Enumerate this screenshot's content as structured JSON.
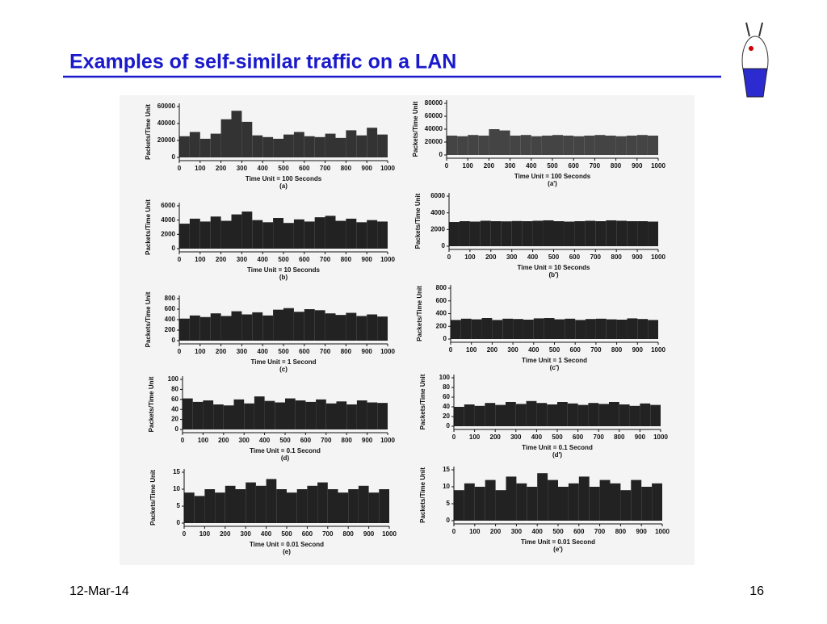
{
  "title": "Examples of self-similar traffic on a LAN",
  "footer": {
    "date": "12-Mar-14",
    "page": "16"
  },
  "chart_data": [
    {
      "type": "histogram",
      "caption": "(a)",
      "y_label": "Packets/Time Unit",
      "x_label": "Time Unit = 100 Seconds",
      "color": "#333333",
      "bins": [
        0,
        50,
        100,
        150,
        200,
        250,
        300,
        350,
        400,
        450,
        500,
        550,
        600,
        650,
        700,
        750,
        800,
        850,
        900,
        950,
        1000
      ],
      "values": [
        25000,
        30000,
        22000,
        28000,
        45000,
        55000,
        42000,
        26000,
        24000,
        22000,
        27000,
        30000,
        25000,
        24000,
        28000,
        23000,
        32000,
        26000,
        35000,
        27000
      ],
      "xlim": [
        0,
        1000
      ],
      "xticks": [
        0,
        100,
        200,
        300,
        400,
        500,
        600,
        700,
        800,
        900,
        1000
      ],
      "ylim": [
        0,
        60000
      ],
      "yticks": [
        0,
        20000,
        40000,
        60000
      ]
    },
    {
      "type": "histogram",
      "caption": "(b)",
      "y_label": "Packets/Time Unit",
      "x_label": "Time Unit = 10 Seconds",
      "color": "#222222",
      "bins": [
        0,
        50,
        100,
        150,
        200,
        250,
        300,
        350,
        400,
        450,
        500,
        550,
        600,
        650,
        700,
        750,
        800,
        850,
        900,
        950,
        1000
      ],
      "values": [
        3500,
        4200,
        3800,
        4500,
        3900,
        4800,
        5200,
        4000,
        3700,
        4300,
        3600,
        4100,
        3800,
        4400,
        4600,
        3900,
        4200,
        3700,
        4000,
        3800
      ],
      "xlim": [
        0,
        1000
      ],
      "xticks": [
        0,
        100,
        200,
        300,
        400,
        500,
        600,
        700,
        800,
        900,
        1000
      ],
      "ylim": [
        0,
        6000
      ],
      "yticks": [
        0,
        2000,
        4000,
        6000
      ]
    },
    {
      "type": "histogram",
      "caption": "(c)",
      "y_label": "Packets/Time Unit",
      "x_label": "Time Unit = 1 Second",
      "color": "#222222",
      "bins": [
        0,
        50,
        100,
        150,
        200,
        250,
        300,
        350,
        400,
        450,
        500,
        550,
        600,
        650,
        700,
        750,
        800,
        850,
        900,
        950,
        1000
      ],
      "values": [
        420,
        480,
        450,
        520,
        470,
        560,
        500,
        540,
        480,
        590,
        620,
        550,
        600,
        580,
        520,
        490,
        530,
        470,
        500,
        460
      ],
      "xlim": [
        0,
        1000
      ],
      "xticks": [
        0,
        100,
        200,
        300,
        400,
        500,
        600,
        700,
        800,
        900,
        1000
      ],
      "ylim": [
        0,
        800
      ],
      "yticks": [
        0,
        200,
        400,
        600,
        800
      ]
    },
    {
      "type": "histogram",
      "caption": "(d)",
      "y_label": "Packets/Time Unit",
      "x_label": "Time Unit = 0.1 Second",
      "color": "#222222",
      "bins": [
        0,
        50,
        100,
        150,
        200,
        250,
        300,
        350,
        400,
        450,
        500,
        550,
        600,
        650,
        700,
        750,
        800,
        850,
        900,
        950,
        1000
      ],
      "values": [
        62,
        55,
        58,
        50,
        48,
        60,
        52,
        66,
        57,
        54,
        62,
        58,
        55,
        60,
        52,
        56,
        50,
        58,
        54,
        53
      ],
      "xlim": [
        0,
        1000
      ],
      "xticks": [
        0,
        100,
        200,
        300,
        400,
        500,
        600,
        700,
        800,
        900,
        1000
      ],
      "ylim": [
        0,
        100
      ],
      "yticks": [
        0,
        20,
        40,
        60,
        80,
        100
      ]
    },
    {
      "type": "histogram",
      "caption": "(e)",
      "y_label": "Packets/Time Unit",
      "x_label": "Time Unit = 0.01 Second",
      "color": "#222222",
      "bins": [
        0,
        50,
        100,
        150,
        200,
        250,
        300,
        350,
        400,
        450,
        500,
        550,
        600,
        650,
        700,
        750,
        800,
        850,
        900,
        950,
        1000
      ],
      "values": [
        9,
        8,
        10,
        9,
        11,
        10,
        12,
        11,
        13,
        10,
        9,
        10,
        11,
        12,
        10,
        9,
        10,
        11,
        9,
        10
      ],
      "xlim": [
        0,
        1000
      ],
      "xticks": [
        0,
        100,
        200,
        300,
        400,
        500,
        600,
        700,
        800,
        900,
        1000
      ],
      "ylim": [
        0,
        15
      ],
      "yticks": [
        0,
        5,
        10,
        15
      ]
    },
    {
      "type": "histogram",
      "caption": "(a')",
      "y_label": "Packets/Time Unit",
      "x_label": "Time Unit = 100 Seconds",
      "color": "#444444",
      "bins": [
        0,
        50,
        100,
        150,
        200,
        250,
        300,
        350,
        400,
        450,
        500,
        550,
        600,
        650,
        700,
        750,
        800,
        850,
        900,
        950,
        1000
      ],
      "values": [
        30000,
        29000,
        31000,
        30000,
        40000,
        38000,
        30000,
        31000,
        29000,
        30000,
        31000,
        30000,
        29000,
        30000,
        31000,
        30000,
        29000,
        30000,
        31000,
        30000
      ],
      "xlim": [
        0,
        1000
      ],
      "xticks": [
        0,
        100,
        200,
        300,
        400,
        500,
        600,
        700,
        800,
        900,
        1000
      ],
      "ylim": [
        0,
        80000
      ],
      "yticks": [
        0,
        20000,
        40000,
        60000,
        80000
      ]
    },
    {
      "type": "histogram",
      "caption": "(b')",
      "y_label": "Packets/Time Unit",
      "x_label": "Time Unit = 10 Seconds",
      "color": "#222222",
      "bins": [
        0,
        50,
        100,
        150,
        200,
        250,
        300,
        350,
        400,
        450,
        500,
        550,
        600,
        650,
        700,
        750,
        800,
        850,
        900,
        950,
        1000
      ],
      "values": [
        2900,
        3000,
        2950,
        3050,
        3000,
        2980,
        3020,
        3000,
        3050,
        3100,
        3000,
        2950,
        3000,
        3050,
        3000,
        3100,
        3050,
        3000,
        3000,
        2950
      ],
      "xlim": [
        0,
        1000
      ],
      "xticks": [
        0,
        100,
        200,
        300,
        400,
        500,
        600,
        700,
        800,
        900,
        1000
      ],
      "ylim": [
        0,
        6000
      ],
      "yticks": [
        0,
        2000,
        4000,
        6000
      ]
    },
    {
      "type": "histogram",
      "caption": "(c')",
      "y_label": "Packets/Time Unit",
      "x_label": "Time Unit = 1 Second",
      "color": "#222222",
      "bins": [
        0,
        50,
        100,
        150,
        200,
        250,
        300,
        350,
        400,
        450,
        500,
        550,
        600,
        650,
        700,
        750,
        800,
        850,
        900,
        950,
        1000
      ],
      "values": [
        300,
        320,
        310,
        330,
        300,
        320,
        315,
        305,
        325,
        330,
        310,
        320,
        300,
        315,
        320,
        310,
        305,
        325,
        315,
        300
      ],
      "xlim": [
        0,
        1000
      ],
      "xticks": [
        0,
        100,
        200,
        300,
        400,
        500,
        600,
        700,
        800,
        900,
        1000
      ],
      "ylim": [
        0,
        800
      ],
      "yticks": [
        0,
        200,
        400,
        600,
        800
      ]
    },
    {
      "type": "histogram",
      "caption": "(d')",
      "y_label": "Packets/Time Unit",
      "x_label": "Time Unit = 0.1 Second",
      "color": "#222222",
      "bins": [
        0,
        50,
        100,
        150,
        200,
        250,
        300,
        350,
        400,
        450,
        500,
        550,
        600,
        650,
        700,
        750,
        800,
        850,
        900,
        950,
        1000
      ],
      "values": [
        40,
        45,
        42,
        48,
        44,
        50,
        46,
        52,
        48,
        45,
        50,
        47,
        44,
        48,
        46,
        50,
        45,
        42,
        47,
        44
      ],
      "xlim": [
        0,
        1000
      ],
      "xticks": [
        0,
        100,
        200,
        300,
        400,
        500,
        600,
        700,
        800,
        900,
        1000
      ],
      "ylim": [
        0,
        100
      ],
      "yticks": [
        0,
        20,
        40,
        60,
        80,
        100
      ]
    },
    {
      "type": "histogram",
      "caption": "(e')",
      "y_label": "Packets/Time Unit",
      "x_label": "Time Unit = 0.01 Second",
      "color": "#222222",
      "bins": [
        0,
        50,
        100,
        150,
        200,
        250,
        300,
        350,
        400,
        450,
        500,
        550,
        600,
        650,
        700,
        750,
        800,
        850,
        900,
        950,
        1000
      ],
      "values": [
        9,
        11,
        10,
        12,
        9,
        13,
        11,
        10,
        14,
        12,
        10,
        11,
        13,
        10,
        12,
        11,
        9,
        12,
        10,
        11
      ],
      "xlim": [
        0,
        1000
      ],
      "xticks": [
        0,
        100,
        200,
        300,
        400,
        500,
        600,
        700,
        800,
        900,
        1000
      ],
      "ylim": [
        0,
        15
      ],
      "yticks": [
        0,
        5,
        10,
        15
      ]
    }
  ]
}
